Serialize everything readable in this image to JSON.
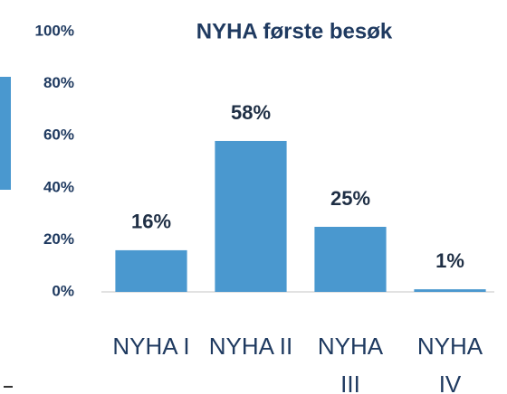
{
  "chart_data": {
    "type": "bar",
    "title": "NYHA første besøk",
    "categories": [
      "NYHA I",
      "NYHA II",
      "NYHA III",
      "NYHA IV"
    ],
    "values": [
      16,
      58,
      25,
      1
    ],
    "value_labels": [
      "16%",
      "58%",
      "25%",
      "1%"
    ],
    "color": "#4a98cf",
    "ylim": [
      0,
      100
    ],
    "yticks": [
      {
        "value": 0,
        "label": "0%"
      },
      {
        "value": 20,
        "label": "20%"
      },
      {
        "value": 40,
        "label": "40%"
      },
      {
        "value": 60,
        "label": "60%"
      },
      {
        "value": 80,
        "label": "80%"
      },
      {
        "value": 100,
        "label": "100%"
      }
    ],
    "grid": false
  }
}
